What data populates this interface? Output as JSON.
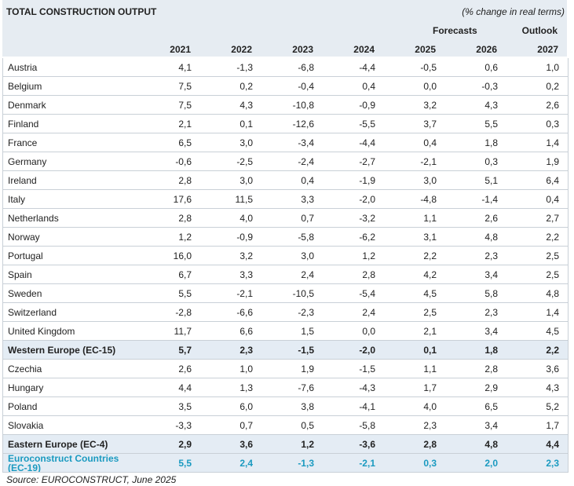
{
  "header": {
    "title": "TOTAL CONSTRUCTION OUTPUT",
    "units": "(% change in real terms)",
    "forecasts_label": "Forecasts",
    "outlook_label": "Outlook"
  },
  "table": {
    "columns": [
      "2021",
      "2022",
      "2023",
      "2024",
      "2025",
      "2026",
      "2027"
    ],
    "rows": [
      [
        "Austria",
        "4,1",
        "-1,3",
        "-6,8",
        "-4,4",
        "-0,5",
        "0,6",
        "1,0"
      ],
      [
        "Belgium",
        "7,5",
        "0,2",
        "-0,4",
        "0,4",
        "0,0",
        "-0,3",
        "0,2"
      ],
      [
        "Denmark",
        "7,5",
        "4,3",
        "-10,8",
        "-0,9",
        "3,2",
        "4,3",
        "2,6"
      ],
      [
        "Finland",
        "2,1",
        "0,1",
        "-12,6",
        "-5,5",
        "3,7",
        "5,5",
        "0,3"
      ],
      [
        "France",
        "6,5",
        "3,0",
        "-3,4",
        "-4,4",
        "0,4",
        "1,8",
        "1,4"
      ],
      [
        "Germany",
        "-0,6",
        "-2,5",
        "-2,4",
        "-2,7",
        "-2,1",
        "0,3",
        "1,9"
      ],
      [
        "Ireland",
        "2,8",
        "3,0",
        "0,4",
        "-1,9",
        "3,0",
        "5,1",
        "6,4"
      ],
      [
        "Italy",
        "17,6",
        "11,5",
        "3,3",
        "-2,0",
        "-4,8",
        "-1,4",
        "0,4"
      ],
      [
        "Netherlands",
        "2,8",
        "4,0",
        "0,7",
        "-3,2",
        "1,1",
        "2,6",
        "2,7"
      ],
      [
        "Norway",
        "1,2",
        "-0,9",
        "-5,8",
        "-6,2",
        "3,1",
        "4,8",
        "2,2"
      ],
      [
        "Portugal",
        "16,0",
        "3,2",
        "3,0",
        "1,2",
        "2,2",
        "2,3",
        "2,5"
      ],
      [
        "Spain",
        "6,7",
        "3,3",
        "2,4",
        "2,8",
        "4,2",
        "3,4",
        "2,5"
      ],
      [
        "Sweden",
        "5,5",
        "-2,1",
        "-10,5",
        "-5,4",
        "4,5",
        "5,8",
        "4,8"
      ],
      [
        "Switzerland",
        "-2,8",
        "-6,6",
        "-2,3",
        "2,4",
        "2,5",
        "2,3",
        "1,4"
      ],
      [
        "United Kingdom",
        "11,7",
        "6,6",
        "1,5",
        "0,0",
        "2,1",
        "3,4",
        "4,5"
      ],
      [
        "Western Europe (EC-15)",
        "5,7",
        "2,3",
        "-1,5",
        "-2,0",
        "0,1",
        "1,8",
        "2,2"
      ],
      [
        "Czechia",
        "2,6",
        "1,0",
        "1,9",
        "-1,5",
        "1,1",
        "2,8",
        "3,6"
      ],
      [
        "Hungary",
        "4,4",
        "1,3",
        "-7,6",
        "-4,3",
        "1,7",
        "2,9",
        "4,3"
      ],
      [
        "Poland",
        "3,5",
        "6,0",
        "3,8",
        "-4,1",
        "4,0",
        "6,5",
        "5,2"
      ],
      [
        "Slovakia",
        "-3,3",
        "0,7",
        "0,5",
        "-5,8",
        "2,3",
        "3,4",
        "1,7"
      ],
      [
        "Eastern Europe (EC-4)",
        "2,9",
        "3,6",
        "1,2",
        "-3,6",
        "2,8",
        "4,8",
        "4,4"
      ],
      [
        "Euroconstruct Countries (EC-19)",
        "5,5",
        "2,4",
        "-1,3",
        "-2,1",
        "0,3",
        "2,0",
        "2,3"
      ]
    ]
  },
  "footer": {
    "source": "Source: EUROCONSTRUCT, June 2025"
  }
}
